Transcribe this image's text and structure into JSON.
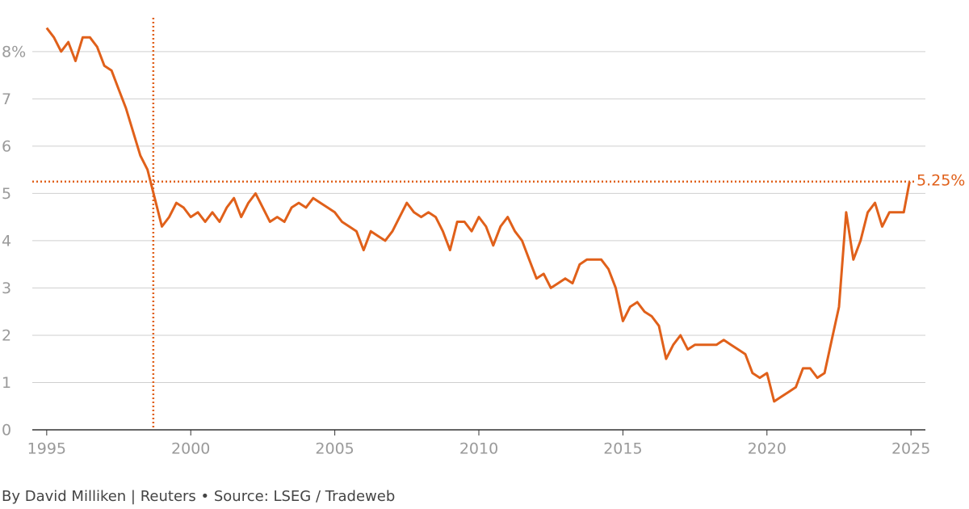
{
  "chart_data": {
    "type": "line",
    "x": [
      1995,
      1995.25,
      1995.5,
      1995.75,
      1996,
      1996.25,
      1996.5,
      1996.75,
      1997,
      1997.25,
      1997.5,
      1997.75,
      1998,
      1998.25,
      1998.5,
      1998.75,
      1999,
      1999.25,
      1999.5,
      1999.75,
      2000,
      2000.25,
      2000.5,
      2000.75,
      2001,
      2001.25,
      2001.5,
      2001.75,
      2002,
      2002.25,
      2002.5,
      2002.75,
      2003,
      2003.25,
      2003.5,
      2003.75,
      2004,
      2004.25,
      2004.5,
      2004.75,
      2005,
      2005.25,
      2005.5,
      2005.75,
      2006,
      2006.25,
      2006.5,
      2006.75,
      2007,
      2007.25,
      2007.5,
      2007.75,
      2008,
      2008.25,
      2008.5,
      2008.75,
      2009,
      2009.25,
      2009.5,
      2009.75,
      2010,
      2010.25,
      2010.5,
      2010.75,
      2011,
      2011.25,
      2011.5,
      2011.75,
      2012,
      2012.25,
      2012.5,
      2012.75,
      2013,
      2013.25,
      2013.5,
      2013.75,
      2014,
      2014.25,
      2014.5,
      2014.75,
      2015,
      2015.25,
      2015.5,
      2015.75,
      2016,
      2016.25,
      2016.5,
      2016.75,
      2017,
      2017.25,
      2017.5,
      2017.75,
      2018,
      2018.25,
      2018.5,
      2018.75,
      2019,
      2019.25,
      2019.5,
      2019.75,
      2020,
      2020.25,
      2020.5,
      2020.75,
      2021,
      2021.25,
      2021.5,
      2021.75,
      2022,
      2022.25,
      2022.5,
      2022.75,
      2023,
      2023.25,
      2023.5,
      2023.75,
      2024,
      2024.25,
      2024.5,
      2024.75,
      2024.95
    ],
    "series": [
      {
        "color": "#e0601a",
        "values": [
          8.5,
          8.3,
          8.0,
          8.2,
          7.8,
          8.3,
          8.3,
          8.1,
          7.7,
          7.6,
          7.2,
          6.8,
          6.3,
          5.8,
          5.5,
          4.9,
          4.3,
          4.5,
          4.8,
          4.7,
          4.5,
          4.6,
          4.4,
          4.6,
          4.4,
          4.7,
          4.9,
          4.5,
          4.8,
          5.0,
          4.7,
          4.4,
          4.5,
          4.4,
          4.7,
          4.8,
          4.7,
          4.9,
          4.8,
          4.7,
          4.6,
          4.4,
          4.3,
          4.2,
          3.8,
          4.2,
          4.1,
          4.0,
          4.2,
          4.5,
          4.8,
          4.6,
          4.5,
          4.6,
          4.5,
          4.2,
          3.8,
          4.4,
          4.4,
          4.2,
          4.5,
          4.3,
          3.9,
          4.3,
          4.5,
          4.2,
          4.0,
          3.6,
          3.2,
          3.3,
          3.0,
          3.1,
          3.2,
          3.1,
          3.5,
          3.6,
          3.6,
          3.6,
          3.4,
          3.0,
          2.3,
          2.6,
          2.7,
          2.5,
          2.4,
          2.2,
          1.5,
          1.8,
          2.0,
          1.7,
          1.8,
          1.8,
          1.8,
          1.8,
          1.9,
          1.8,
          1.7,
          1.6,
          1.2,
          1.1,
          1.2,
          0.6,
          0.7,
          0.8,
          0.9,
          1.3,
          1.3,
          1.1,
          1.2,
          1.9,
          2.6,
          4.6,
          3.6,
          4.0,
          4.6,
          4.8,
          4.3,
          4.6,
          4.6,
          4.6,
          5.25
        ]
      }
    ],
    "xlim": [
      1994.5,
      2025.5
    ],
    "xticks": [
      1995,
      2000,
      2005,
      2010,
      2015,
      2020,
      2025
    ],
    "ylim": [
      0,
      8.8
    ],
    "yticks": [
      0,
      1,
      2,
      3,
      4,
      5,
      6,
      7,
      {
        "value": 8,
        "label": "8%"
      }
    ],
    "grid": true,
    "reference_lines": [
      {
        "axis": "y",
        "value": 5.25,
        "label": "5.25%"
      },
      {
        "axis": "x",
        "value": 1998.7
      }
    ],
    "footer": "By David Milliken | Reuters • Source: LSEG / Tradeweb"
  }
}
